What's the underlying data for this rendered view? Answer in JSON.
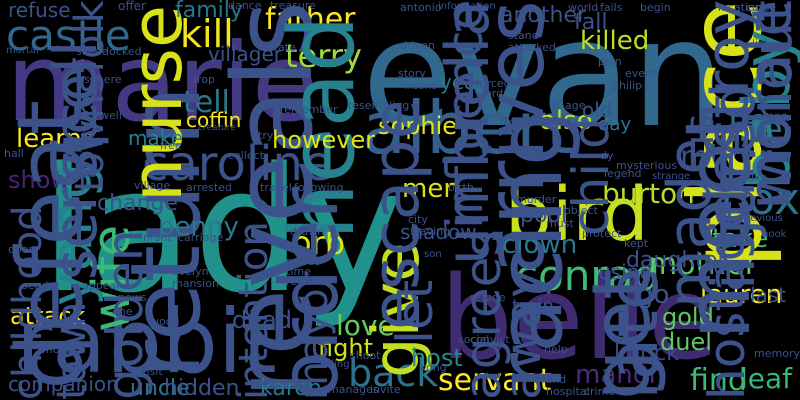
{
  "cloud": {
    "background": "#000000",
    "words": [
      {
        "text": "evan",
        "color": "#31688e"
      },
      {
        "text": "marie",
        "color": "#443a83"
      },
      {
        "text": "lady",
        "color": "#21918c"
      },
      {
        "text": "belle",
        "color": "#3f2c70"
      },
      {
        "text": "rabbit",
        "color": "#3b528b"
      },
      {
        "text": "albert",
        "color": "#355f8d"
      },
      {
        "text": "bird",
        "color": "#c8e020"
      },
      {
        "text": "caroline",
        "color": "#3b528b"
      },
      {
        "text": "castle",
        "color": "#31688e"
      },
      {
        "text": "kill",
        "color": "#f1e51d"
      },
      {
        "text": "father",
        "color": "#fde725"
      },
      {
        "text": "terry",
        "color": "#9fda3a"
      },
      {
        "text": "conrad",
        "color": "#3dbc74"
      },
      {
        "text": "box",
        "color": "#2c728e"
      },
      {
        "text": "life",
        "color": "#2c728e"
      },
      {
        "text": "mirror",
        "color": "#3b528b"
      },
      {
        "text": "burton",
        "color": "#b8de29"
      },
      {
        "text": "mother",
        "color": "#5ec962"
      },
      {
        "text": "back",
        "color": "#2c728e"
      },
      {
        "text": "servant",
        "color": "#fde725"
      },
      {
        "text": "manor",
        "color": "#472d7b"
      },
      {
        "text": "find",
        "color": "#3aba76"
      },
      {
        "text": "leaf",
        "color": "#35b779"
      },
      {
        "text": "lauren",
        "color": "#fde725"
      },
      {
        "text": "orb",
        "color": "#dde318"
      },
      {
        "text": "tell",
        "color": "#2a788e"
      },
      {
        "text": "take",
        "color": "#3aba76"
      },
      {
        "text": "reveals",
        "color": "#3b528b"
      },
      {
        "text": "return",
        "color": "#3b528b"
      },
      {
        "text": "killed",
        "color": "#bddf26"
      },
      {
        "text": "arrives",
        "color": "#3b528b"
      },
      {
        "text": "men",
        "color": "#d8e219"
      },
      {
        "text": "head",
        "color": "#26828e"
      },
      {
        "text": "place",
        "color": "#d8e219"
      },
      {
        "text": "baby",
        "color": "#26828e"
      },
      {
        "text": "love",
        "color": "#65cb5e"
      },
      {
        "text": "clown",
        "color": "#2a788e"
      },
      {
        "text": "go",
        "color": "#3a548c"
      },
      {
        "text": "give",
        "color": "#c2df23"
      },
      {
        "text": "wife",
        "color": "#3aba76"
      },
      {
        "text": "yang",
        "color": "#26828e"
      },
      {
        "text": "also",
        "color": "#bddf26"
      },
      {
        "text": "show",
        "color": "#482475"
      },
      {
        "text": "learns",
        "color": "#fde725"
      },
      {
        "text": "however",
        "color": "#dde318"
      },
      {
        "text": "fight",
        "color": "#d5e21a"
      },
      {
        "text": "gold",
        "color": "#5ec962"
      },
      {
        "text": "dead",
        "color": "#3b528b"
      },
      {
        "text": "attack",
        "color": "#fde725"
      },
      {
        "text": "uncle",
        "color": "#2a788e"
      },
      {
        "text": "hidden",
        "color": "#3b528b"
      },
      {
        "text": "karen",
        "color": "#2a788e"
      },
      {
        "text": "host",
        "color": "#23888e"
      },
      {
        "text": "knock",
        "color": "#404688"
      },
      {
        "text": "duel",
        "color": "#5ec962"
      },
      {
        "text": "penny",
        "color": "#2a788e"
      },
      {
        "text": "nurse",
        "color": "#d8e219"
      },
      {
        "text": "coffin",
        "color": "#fde725"
      },
      {
        "text": "year",
        "color": "#2a788e"
      },
      {
        "text": "old",
        "color": "#3b528b"
      },
      {
        "text": "day",
        "color": "#2a788e"
      },
      {
        "text": "sophie",
        "color": "#e5e419"
      },
      {
        "text": "make",
        "color": "#26828e"
      },
      {
        "text": "family",
        "color": "#2a788e"
      },
      {
        "text": "refuse",
        "color": "#3b528b"
      },
      {
        "text": "villager",
        "color": "#3b528b"
      },
      {
        "text": "another",
        "color": "#3b528b"
      },
      {
        "text": "fall",
        "color": "#3b528b"
      },
      {
        "text": "us",
        "color": "#3b528b"
      },
      {
        "text": "morale",
        "color": "#3b528b"
      },
      {
        "text": "without",
        "color": "#3b528b"
      },
      {
        "text": "defeat",
        "color": "#3b528b"
      },
      {
        "text": "companion",
        "color": "#3b528b"
      },
      {
        "text": "order",
        "color": "#3b528b"
      },
      {
        "text": "shadow",
        "color": "#3b528b"
      },
      {
        "text": "pool",
        "color": "#3b528b"
      },
      {
        "text": "meet",
        "color": "#3b528b"
      },
      {
        "text": "escape",
        "color": "#3b528b"
      },
      {
        "text": "racing",
        "color": "#3b528b"
      },
      {
        "text": "change",
        "color": "#3b528b"
      },
      {
        "text": "daughter",
        "color": "#3b528b"
      },
      {
        "text": "lo",
        "color": "#3b528b"
      },
      {
        "text": "last",
        "color": "#3b528b"
      },
      {
        "text": "get",
        "color": "#3b528b"
      },
      {
        "text": "late",
        "color": "#3b528b"
      },
      {
        "text": "train",
        "color": "#3b528b"
      },
      {
        "text": "using",
        "color": "#3b528b"
      },
      {
        "text": "umbrella",
        "color": "#3b528b"
      },
      {
        "text": "offer",
        "color": "#3b528b"
      },
      {
        "text": "dance",
        "color": "#3b528b"
      },
      {
        "text": "treasure",
        "color": "#3b528b"
      },
      {
        "text": "state",
        "color": "#3b528b"
      },
      {
        "text": "drop",
        "color": "#3b528b"
      },
      {
        "text": "antonio",
        "color": "#3b528b"
      },
      {
        "text": "information",
        "color": "#3b528b"
      },
      {
        "text": "world",
        "color": "#3b528b"
      },
      {
        "text": "fails",
        "color": "#3b528b"
      },
      {
        "text": "begin",
        "color": "#3b528b"
      },
      {
        "text": "location",
        "color": "#3b528b"
      },
      {
        "text": "curse",
        "color": "#3b528b"
      },
      {
        "text": "stand",
        "color": "#3b528b"
      },
      {
        "text": "attacked",
        "color": "#3b528b"
      },
      {
        "text": "driven",
        "color": "#3b528b"
      },
      {
        "text": "plan",
        "color": "#3b528b"
      },
      {
        "text": "event",
        "color": "#3b528b"
      },
      {
        "text": "philip",
        "color": "#3b528b"
      },
      {
        "text": "list",
        "color": "#3b528b"
      },
      {
        "text": "story",
        "color": "#3b528b"
      },
      {
        "text": "insane",
        "color": "#3b528b"
      },
      {
        "text": "lord",
        "color": "#3b528b"
      },
      {
        "text": "influence",
        "color": "#3b528b"
      },
      {
        "text": "age",
        "color": "#3b528b"
      },
      {
        "text": "disappears",
        "color": "#3b528b"
      },
      {
        "text": "well",
        "color": "#3b528b"
      },
      {
        "text": "sphere",
        "color": "#3b528b"
      },
      {
        "text": "scene",
        "color": "#3b528b"
      },
      {
        "text": "locked",
        "color": "#3b528b"
      },
      {
        "text": "mortal",
        "color": "#3b528b"
      },
      {
        "text": "spell",
        "color": "#3b528b"
      },
      {
        "text": "townsfolk",
        "color": "#3b528b"
      },
      {
        "text": "destroy",
        "color": "#3b528b"
      },
      {
        "text": "creature",
        "color": "#3b528b"
      },
      {
        "text": "remember",
        "color": "#3b528b"
      },
      {
        "text": "resembling",
        "color": "#3b528b"
      },
      {
        "text": "try",
        "color": "#3b528b"
      },
      {
        "text": "free",
        "color": "#3b528b"
      },
      {
        "text": "hall",
        "color": "#3b528b"
      },
      {
        "text": "collect",
        "color": "#3b528b"
      },
      {
        "text": "child",
        "color": "#3b528b"
      },
      {
        "text": "dy",
        "color": "#3b528b"
      },
      {
        "text": "legend",
        "color": "#3b528b"
      },
      {
        "text": "strange",
        "color": "#3b528b"
      },
      {
        "text": "like",
        "color": "#3b528b"
      },
      {
        "text": "injured",
        "color": "#3b528b"
      },
      {
        "text": "village",
        "color": "#3b528b"
      },
      {
        "text": "arrested",
        "color": "#3b528b"
      },
      {
        "text": "travel",
        "color": "#3b528b"
      },
      {
        "text": "following",
        "color": "#3b528b"
      },
      {
        "text": "birth",
        "color": "#3b528b"
      },
      {
        "text": "murder",
        "color": "#3b528b"
      },
      {
        "text": "object",
        "color": "#3b528b"
      },
      {
        "text": "previous",
        "color": "#3b528b"
      },
      {
        "text": "hook",
        "color": "#3b528b"
      },
      {
        "text": "service",
        "color": "#3b528b"
      },
      {
        "text": "infant",
        "color": "#3b528b"
      },
      {
        "text": "carriage",
        "color": "#3b528b"
      },
      {
        "text": "drawn",
        "color": "#3b528b"
      },
      {
        "text": "leaving",
        "color": "#3b528b"
      },
      {
        "text": "city",
        "color": "#3b528b"
      },
      {
        "text": "must",
        "color": "#3b528b"
      },
      {
        "text": "protect",
        "color": "#3b528b"
      },
      {
        "text": "kept",
        "color": "#3b528b"
      },
      {
        "text": "made",
        "color": "#3b528b"
      },
      {
        "text": "open",
        "color": "#3b528b"
      },
      {
        "text": "evelyn",
        "color": "#3b528b"
      },
      {
        "text": "mansion",
        "color": "#3b528b"
      },
      {
        "text": "prince",
        "color": "#3b528b"
      },
      {
        "text": "time",
        "color": "#3b528b"
      },
      {
        "text": "release",
        "color": "#3b528b"
      },
      {
        "text": "sends",
        "color": "#3b528b"
      },
      {
        "text": "appear",
        "color": "#3b528b"
      },
      {
        "text": "son",
        "color": "#3b528b"
      },
      {
        "text": "news",
        "color": "#3b528b"
      },
      {
        "text": "one",
        "color": "#3b528b"
      },
      {
        "text": "wood",
        "color": "#3b528b"
      },
      {
        "text": "refuge",
        "color": "#3b528b"
      },
      {
        "text": "let",
        "color": "#3b528b"
      },
      {
        "text": "morgan",
        "color": "#3b528b"
      },
      {
        "text": "golden",
        "color": "#3b528b"
      },
      {
        "text": "mayor",
        "color": "#3b528b"
      },
      {
        "text": "intention",
        "color": "#3b528b"
      },
      {
        "text": "social",
        "color": "#3b528b"
      },
      {
        "text": "convict",
        "color": "#3b528b"
      },
      {
        "text": "away",
        "color": "#3b528b"
      },
      {
        "text": "help",
        "color": "#3b528b"
      },
      {
        "text": "hostage",
        "color": "#3b528b"
      },
      {
        "text": "memory",
        "color": "#3b528b"
      },
      {
        "text": "childhood",
        "color": "#3b528b"
      },
      {
        "text": "town",
        "color": "#3b528b"
      },
      {
        "text": "visit",
        "color": "#3b528b"
      },
      {
        "text": "killing",
        "color": "#3b528b"
      },
      {
        "text": "shoot",
        "color": "#3b528b"
      },
      {
        "text": "kong",
        "color": "#3b528b"
      },
      {
        "text": "agrees",
        "color": "#3b528b"
      },
      {
        "text": "manages",
        "color": "#3b528b"
      },
      {
        "text": "invite",
        "color": "#3b528b"
      },
      {
        "text": "friend",
        "color": "#3b528b"
      },
      {
        "text": "hospital",
        "color": "#3b528b"
      },
      {
        "text": "crime",
        "color": "#3b528b"
      },
      {
        "text": "forced",
        "color": "#3b528b"
      },
      {
        "text": "mysterious",
        "color": "#3b528b"
      },
      {
        "text": "hong",
        "color": "#3b528b"
      },
      {
        "text": "gun",
        "color": "#3b528b"
      },
      {
        "text": "wing",
        "color": "#3b528b"
      }
    ]
  }
}
